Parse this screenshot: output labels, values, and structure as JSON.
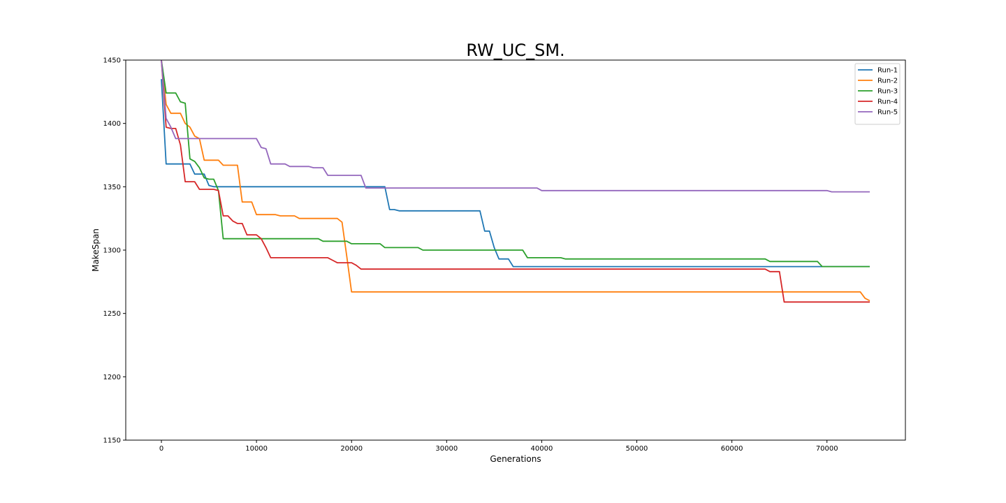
{
  "chart_data": {
    "type": "line",
    "title": "RW_UC_SM.",
    "xlabel": "Generations",
    "ylabel": "MakeSpan",
    "xlim": [
      -3750,
      78250
    ],
    "ylim": [
      1150,
      1450
    ],
    "xticks": [
      0,
      10000,
      20000,
      30000,
      40000,
      50000,
      60000,
      70000
    ],
    "yticks": [
      1150,
      1200,
      1250,
      1300,
      1350,
      1400,
      1450
    ],
    "grid": false,
    "legend_position": "upper-right",
    "series": [
      {
        "name": "Run-1",
        "color": "#1f77b4",
        "points": [
          [
            0,
            1435
          ],
          [
            500,
            1368
          ],
          [
            3000,
            1368
          ],
          [
            3500,
            1360
          ],
          [
            4500,
            1360
          ],
          [
            5000,
            1351
          ],
          [
            5500,
            1350
          ],
          [
            23500,
            1350
          ],
          [
            24000,
            1332
          ],
          [
            24500,
            1332
          ],
          [
            25000,
            1331
          ],
          [
            33500,
            1331
          ],
          [
            34000,
            1315
          ],
          [
            34500,
            1315
          ],
          [
            35000,
            1302
          ],
          [
            35500,
            1293
          ],
          [
            36500,
            1293
          ],
          [
            37000,
            1287
          ],
          [
            74500,
            1287
          ]
        ]
      },
      {
        "name": "Run-2",
        "color": "#ff7f0e",
        "points": [
          [
            0,
            1450
          ],
          [
            500,
            1415
          ],
          [
            1000,
            1408
          ],
          [
            2000,
            1408
          ],
          [
            2500,
            1400
          ],
          [
            3000,
            1397
          ],
          [
            3500,
            1390
          ],
          [
            4000,
            1388
          ],
          [
            4500,
            1371
          ],
          [
            6000,
            1371
          ],
          [
            6500,
            1367
          ],
          [
            8000,
            1367
          ],
          [
            8500,
            1338
          ],
          [
            9500,
            1338
          ],
          [
            10000,
            1328
          ],
          [
            12000,
            1328
          ],
          [
            12500,
            1327
          ],
          [
            14000,
            1327
          ],
          [
            14500,
            1325
          ],
          [
            18500,
            1325
          ],
          [
            19000,
            1322
          ],
          [
            19500,
            1295
          ],
          [
            20000,
            1267
          ],
          [
            73500,
            1267
          ],
          [
            74000,
            1262
          ],
          [
            74500,
            1260
          ]
        ]
      },
      {
        "name": "Run-3",
        "color": "#2ca02c",
        "points": [
          [
            0,
            1450
          ],
          [
            500,
            1424
          ],
          [
            1500,
            1424
          ],
          [
            2000,
            1417
          ],
          [
            2500,
            1416
          ],
          [
            3000,
            1372
          ],
          [
            3500,
            1370
          ],
          [
            4000,
            1365
          ],
          [
            4500,
            1357
          ],
          [
            5000,
            1356
          ],
          [
            5500,
            1356
          ],
          [
            6000,
            1347
          ],
          [
            6500,
            1309
          ],
          [
            16500,
            1309
          ],
          [
            17000,
            1307
          ],
          [
            19500,
            1307
          ],
          [
            20000,
            1305
          ],
          [
            23000,
            1305
          ],
          [
            23500,
            1302
          ],
          [
            27000,
            1302
          ],
          [
            27500,
            1300
          ],
          [
            38000,
            1300
          ],
          [
            38500,
            1294
          ],
          [
            42000,
            1294
          ],
          [
            42500,
            1293
          ],
          [
            63500,
            1293
          ],
          [
            64000,
            1291
          ],
          [
            69000,
            1291
          ],
          [
            69500,
            1287
          ],
          [
            74500,
            1287
          ]
        ]
      },
      {
        "name": "Run-4",
        "color": "#d62728",
        "points": [
          [
            0,
            1450
          ],
          [
            500,
            1397
          ],
          [
            1000,
            1396
          ],
          [
            1500,
            1396
          ],
          [
            2000,
            1383
          ],
          [
            2500,
            1354
          ],
          [
            3500,
            1354
          ],
          [
            4000,
            1348
          ],
          [
            5500,
            1348
          ],
          [
            6000,
            1347
          ],
          [
            6500,
            1327
          ],
          [
            7000,
            1327
          ],
          [
            7500,
            1323
          ],
          [
            8000,
            1321
          ],
          [
            8500,
            1321
          ],
          [
            9000,
            1312
          ],
          [
            10000,
            1312
          ],
          [
            10500,
            1309
          ],
          [
            11000,
            1302
          ],
          [
            11500,
            1294
          ],
          [
            17500,
            1294
          ],
          [
            18000,
            1292
          ],
          [
            18500,
            1290
          ],
          [
            20000,
            1290
          ],
          [
            20500,
            1288
          ],
          [
            21000,
            1285
          ],
          [
            63500,
            1285
          ],
          [
            64000,
            1283
          ],
          [
            65000,
            1283
          ],
          [
            65500,
            1259
          ],
          [
            74500,
            1259
          ]
        ]
      },
      {
        "name": "Run-5",
        "color": "#9467bd",
        "points": [
          [
            0,
            1450
          ],
          [
            500,
            1404
          ],
          [
            1000,
            1397
          ],
          [
            1500,
            1388
          ],
          [
            2000,
            1388
          ],
          [
            10000,
            1388
          ],
          [
            10500,
            1381
          ],
          [
            11000,
            1380
          ],
          [
            11500,
            1368
          ],
          [
            13000,
            1368
          ],
          [
            13500,
            1366
          ],
          [
            15500,
            1366
          ],
          [
            16000,
            1365
          ],
          [
            17000,
            1365
          ],
          [
            17500,
            1359
          ],
          [
            21000,
            1359
          ],
          [
            21500,
            1349
          ],
          [
            39500,
            1349
          ],
          [
            40000,
            1347
          ],
          [
            70000,
            1347
          ],
          [
            70500,
            1346
          ],
          [
            74500,
            1346
          ]
        ]
      }
    ]
  }
}
